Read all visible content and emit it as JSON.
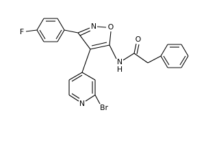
{
  "atoms": [
    "F",
    "N",
    "O",
    "N",
    "Br",
    "N",
    "H",
    "O"
  ]
}
